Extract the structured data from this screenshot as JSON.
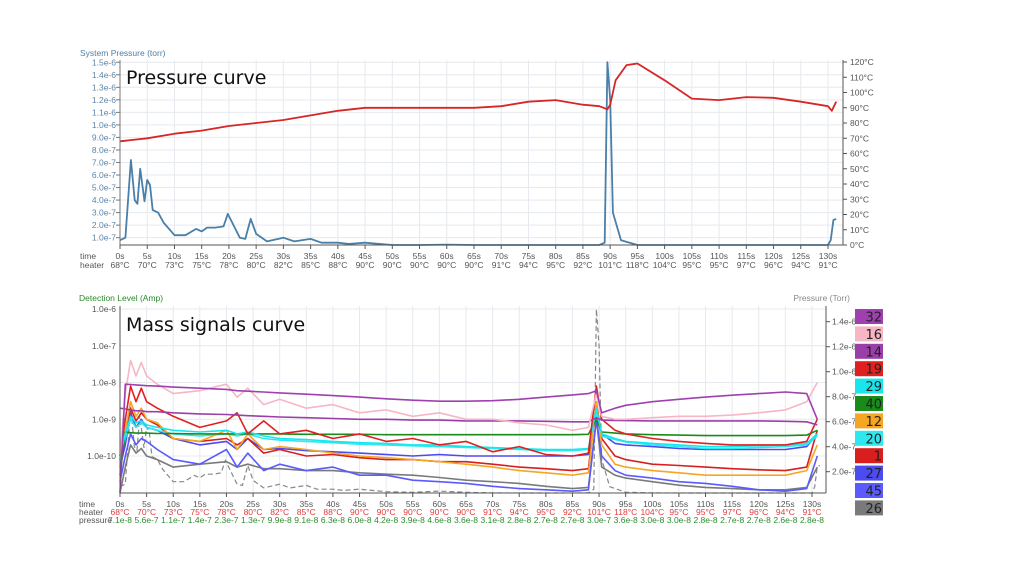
{
  "chart_data": [
    {
      "type": "line",
      "annotation": "Pressure curve",
      "ylabel": "System Pressure (torr)",
      "ylim": [
        0,
        1.5e-06
      ],
      "y_ticks": [
        "1.0e-7",
        "2.0e-7",
        "3.0e-7",
        "4.0e-7",
        "5.0e-7",
        "6.0e-7",
        "7.0e-7",
        "8.0e-7",
        "9.0e-7",
        "1.0e-6",
        "1.1e-6",
        "1.2e-6",
        "1.3e-6",
        "1.4e-6",
        "1.5e-6"
      ],
      "y2lim": [
        0,
        120
      ],
      "y2_ticks": [
        "0°C",
        "10°C",
        "20°C",
        "30°C",
        "40°C",
        "50°C",
        "60°C",
        "70°C",
        "80°C",
        "90°C",
        "100°C",
        "110°C",
        "120°C"
      ],
      "x_row_labels": [
        "time",
        "heater"
      ],
      "x_ticks": [
        "0s",
        "5s",
        "10s",
        "15s",
        "20s",
        "25s",
        "30s",
        "35s",
        "40s",
        "45s",
        "50s",
        "55s",
        "60s",
        "65s",
        "70s",
        "75s",
        "80s",
        "85s",
        "90s",
        "95s",
        "100s",
        "105s",
        "110s",
        "115s",
        "120s",
        "125s",
        "130s"
      ],
      "heater_ticks": [
        "68°C",
        "70°C",
        "73°C",
        "75°C",
        "78°C",
        "80°C",
        "82°C",
        "85°C",
        "88°C",
        "90°C",
        "90°C",
        "90°C",
        "90°C",
        "90°C",
        "91°C",
        "94°C",
        "95°C",
        "92°C",
        "101°C",
        "118°C",
        "104°C",
        "95°C",
        "95°C",
        "97°C",
        "96°C",
        "94°C",
        "91°C"
      ],
      "grid": true,
      "series": [
        {
          "axis": "left",
          "color": "#4a7fa8",
          "x": [
            0,
            1,
            2,
            2.7,
            3.2,
            3.7,
            4.5,
            5,
            5.5,
            6,
            7,
            8,
            10,
            12,
            14,
            15,
            16,
            17.5,
            19,
            19.8,
            20.5,
            22,
            23,
            24,
            25,
            27,
            30,
            32,
            35,
            37,
            40,
            42,
            45,
            50,
            55,
            60,
            65,
            70,
            80,
            88,
            89,
            89.5,
            90,
            90.5,
            92,
            95,
            100,
            110,
            125,
            130,
            130.5,
            131,
            131.5
          ],
          "y": [
            8e-08,
            1e-07,
            7.2e-07,
            4e-07,
            3.7e-07,
            6.5e-07,
            3.9e-07,
            5.6e-07,
            5.2e-07,
            3.2e-07,
            3e-07,
            2.2e-07,
            1.2e-07,
            1.2e-07,
            1.7e-07,
            1.5e-07,
            1.8e-07,
            1.8e-07,
            1.9e-07,
            2.9e-07,
            2.3e-07,
            1e-07,
            9e-08,
            2.5e-07,
            1.3e-07,
            7e-08,
            1e-07,
            7e-08,
            9e-08,
            6e-08,
            6e-08,
            5e-08,
            6e-08,
            4e-08,
            3.5e-08,
            4.5e-08,
            3.5e-08,
            3e-08,
            2.7e-08,
            3e-08,
            6e-08,
            1.5e-06,
            1.2e-06,
            3e-07,
            8e-08,
            3.6e-08,
            3e-08,
            2.8e-08,
            2.6e-08,
            2.8e-08,
            8e-08,
            2.4e-07,
            2.5e-07
          ]
        },
        {
          "axis": "right",
          "color": "#d62728",
          "x": [
            0,
            5,
            10,
            15,
            20,
            25,
            30,
            35,
            40,
            45,
            50,
            55,
            60,
            65,
            70,
            75,
            80,
            85,
            88,
            89.5,
            90,
            91,
            93,
            95,
            100,
            105,
            110,
            115,
            120,
            125,
            130,
            130.7,
            131.5
          ],
          "y": [
            68,
            70,
            73,
            75,
            78,
            80,
            82,
            85,
            88,
            90,
            90,
            90,
            90,
            90,
            91,
            94,
            95,
            92,
            91,
            89,
            92,
            108,
            118,
            119,
            108,
            96,
            95,
            97,
            96.5,
            94,
            91,
            88,
            94
          ]
        }
      ]
    },
    {
      "type": "line",
      "annotation": "Mass signals curve",
      "ylabel": "Detection Level (Amp)",
      "yscale": "log",
      "ylim": [
        1e-11,
        1e-06
      ],
      "y_ticks": [
        "1.0e-6",
        "1.0e-7",
        "1.0e-8",
        "1.0e-9",
        "1.0e-10"
      ],
      "y2label": "Pressure (Torr)",
      "y2lim": [
        0,
        1.5e-06
      ],
      "y2_ticks": [
        "2.0e-7",
        "4.0e-7",
        "6.0e-7",
        "8.0e-7",
        "1.0e-6",
        "1.2e-6",
        "1.4e-6"
      ],
      "x_row_labels": [
        "time",
        "heater",
        "pressure"
      ],
      "x_ticks": [
        "0s",
        "5s",
        "10s",
        "15s",
        "20s",
        "25s",
        "30s",
        "35s",
        "40s",
        "45s",
        "50s",
        "55s",
        "60s",
        "65s",
        "70s",
        "75s",
        "80s",
        "85s",
        "90s",
        "95s",
        "100s",
        "105s",
        "110s",
        "115s",
        "120s",
        "125s",
        "130s"
      ],
      "heater_ticks": [
        "68°C",
        "70°C",
        "73°C",
        "75°C",
        "78°C",
        "80°C",
        "82°C",
        "85°C",
        "88°C",
        "90°C",
        "90°C",
        "90°C",
        "90°C",
        "90°C",
        "91°C",
        "94°C",
        "95°C",
        "92°C",
        "101°C",
        "118°C",
        "104°C",
        "95°C",
        "95°C",
        "97°C",
        "96°C",
        "94°C",
        "91°C"
      ],
      "pressure_ticks": [
        "7.1e-8",
        "5.6e-7",
        "1.1e-7",
        "1.4e-7",
        "2.3e-7",
        "1.3e-7",
        "9.9e-8",
        "9.1e-8",
        "6.3e-8",
        "6.0e-8",
        "4.2e-8",
        "3.9e-8",
        "4.6e-8",
        "3.6e-8",
        "3.1e-8",
        "2.8e-8",
        "2.7e-8",
        "2.7e-8",
        "3.0e-7",
        "3.6e-8",
        "3.0e-8",
        "3.0e-8",
        "2.8e-8",
        "2.7e-8",
        "2.7e-8",
        "2.6e-8",
        "2.8e-8"
      ],
      "grid": true,
      "legend_position": "right",
      "x": [
        0,
        1,
        2,
        3,
        4,
        5,
        7,
        10,
        15,
        20,
        22,
        24,
        27,
        30,
        35,
        40,
        45,
        50,
        55,
        60,
        65,
        70,
        75,
        80,
        85,
        88,
        89.5,
        90.5,
        93,
        95,
        100,
        105,
        110,
        115,
        120,
        125,
        129,
        131
      ],
      "series": [
        {
          "name": "32",
          "color": "#a040b0",
          "y": [
            1e-11,
            9e-09,
            8.8e-09,
            8.6e-09,
            8.4e-09,
            8.2e-09,
            8e-09,
            7.5e-09,
            7e-09,
            6.5e-09,
            6e-09,
            5.8e-09,
            5.5e-09,
            5.2e-09,
            4.8e-09,
            4.4e-09,
            4e-09,
            3.6e-09,
            3.3e-09,
            3.1e-09,
            3.1e-09,
            3.2e-09,
            3.5e-09,
            4e-09,
            4.6e-09,
            5e-09,
            6e-09,
            1.5e-09,
            2e-09,
            2.4e-09,
            3e-09,
            3.5e-09,
            4e-09,
            4.5e-09,
            5e-09,
            5.5e-09,
            5e-09,
            1e-09
          ]
        },
        {
          "name": "16",
          "color": "#f7b6c4",
          "y": [
            1e-10,
            5e-09,
            4e-08,
            1.5e-08,
            3.5e-08,
            1.5e-08,
            9e-09,
            5e-09,
            6e-09,
            9e-09,
            4e-09,
            7e-09,
            2.5e-09,
            3.5e-09,
            2e-09,
            2.5e-09,
            1.5e-09,
            1.8e-09,
            1.2e-09,
            1.5e-09,
            1e-09,
            1e-09,
            8e-10,
            7e-10,
            5e-10,
            6e-10,
            5e-09,
            1.2e-09,
            1e-09,
            1e-09,
            1.1e-09,
            1.2e-09,
            1.2e-09,
            1.3e-09,
            1.5e-09,
            1.8e-09,
            3e-09,
            1e-08
          ]
        },
        {
          "name": "14",
          "color": "#9b3fa8",
          "y": [
            2e-09,
            1.9e-09,
            1.8e-09,
            1.7e-09,
            1.7e-09,
            1.6e-09,
            1.6e-09,
            1.5e-09,
            1.4e-09,
            1.35e-09,
            1.3e-09,
            1.25e-09,
            1.2e-09,
            1.15e-09,
            1.1e-09,
            1.05e-09,
            1e-09,
            1e-09,
            9.5e-10,
            9.5e-10,
            9e-10,
            9e-10,
            9e-10,
            8.8e-10,
            8.5e-10,
            8.5e-10,
            1.1e-09,
            9.5e-10,
            9.3e-10,
            9.2e-10,
            9e-10,
            9e-10,
            9e-10,
            9e-10,
            9e-10,
            8.8e-10,
            8.5e-10,
            7e-10
          ]
        },
        {
          "name": "19",
          "color": "#e02020",
          "y": [
            1e-10,
            1e-09,
            8e-09,
            3e-09,
            7e-09,
            3e-09,
            2e-09,
            1.2e-09,
            6e-10,
            9e-10,
            1.5e-09,
            4e-10,
            9e-10,
            4e-10,
            5e-10,
            3e-10,
            4e-10,
            2.5e-10,
            3e-10,
            2e-10,
            2.5e-10,
            1.3e-10,
            1.8e-10,
            1.1e-10,
            1e-10,
            1.2e-10,
            8e-09,
            1e-09,
            5e-10,
            4e-10,
            3e-10,
            2.5e-10,
            2.2e-10,
            2e-10,
            2e-10,
            2e-10,
            2.5e-10,
            1e-09
          ]
        },
        {
          "name": "29",
          "color": "#19e6ec",
          "y": [
            1e-10,
            4e-10,
            1.2e-09,
            8e-10,
            9e-10,
            7e-10,
            6e-10,
            5e-10,
            4.5e-10,
            5e-10,
            4e-10,
            4.5e-10,
            3.5e-10,
            3e-10,
            2.8e-10,
            2.5e-10,
            2.3e-10,
            2.2e-10,
            2e-10,
            2e-10,
            1.8e-10,
            1.7e-10,
            1.6e-10,
            1.5e-10,
            1.5e-10,
            1.6e-10,
            2e-09,
            4e-10,
            3e-10,
            2.5e-10,
            2.2e-10,
            2e-10,
            1.8e-10,
            1.8e-10,
            1.9e-10,
            2e-10,
            2.2e-10,
            4e-10
          ]
        },
        {
          "name": "40",
          "color": "#1a8a1a",
          "y": [
            3e-11,
            4.5e-10,
            4.3e-10,
            4.2e-10,
            4.2e-10,
            4.2e-10,
            4.1e-10,
            4.1e-10,
            4e-10,
            4e-10,
            4e-10,
            4e-10,
            4e-10,
            4e-10,
            3.9e-10,
            3.9e-10,
            3.9e-10,
            3.8e-10,
            3.8e-10,
            3.8e-10,
            3.8e-10,
            3.8e-10,
            3.8e-10,
            3.8e-10,
            3.8e-10,
            3.9e-10,
            1e-09,
            4.5e-10,
            4.2e-10,
            4e-10,
            3.8e-10,
            3.7e-10,
            3.6e-10,
            3.6e-10,
            3.6e-10,
            3.6e-10,
            3.7e-10,
            5e-10
          ]
        },
        {
          "name": "12",
          "color": "#f5a623",
          "y": [
            1e-10,
            5e-10,
            3e-09,
            1.2e-09,
            2e-09,
            1e-09,
            8e-10,
            3e-10,
            2.5e-10,
            5e-10,
            1.5e-10,
            4e-10,
            1.5e-10,
            1.8e-10,
            1.5e-10,
            1.2e-10,
            1e-10,
            9e-11,
            8e-11,
            7e-11,
            6e-11,
            5e-11,
            4e-11,
            3.5e-11,
            3e-11,
            3.5e-11,
            3e-09,
            2e-10,
            6e-11,
            5e-11,
            4e-11,
            3.5e-11,
            3e-11,
            3e-11,
            3e-11,
            3e-11,
            4e-11,
            2e-10
          ]
        },
        {
          "name": "20",
          "color": "#2ee8f0",
          "y": [
            8e-11,
            3e-10,
            1e-09,
            6e-10,
            8e-10,
            6e-10,
            5e-10,
            4e-10,
            3.5e-10,
            4e-10,
            3.5e-10,
            4e-10,
            3e-10,
            2.7e-10,
            2.5e-10,
            2.3e-10,
            2.1e-10,
            2e-10,
            1.9e-10,
            1.8e-10,
            1.7e-10,
            1.6e-10,
            1.5e-10,
            1.4e-10,
            1.4e-10,
            1.5e-10,
            1.5e-09,
            3.5e-10,
            2.8e-10,
            2.4e-10,
            2e-10,
            1.8e-10,
            1.6e-10,
            1.6e-10,
            1.7e-10,
            1.8e-10,
            2e-10,
            3.5e-10
          ]
        },
        {
          "name": "1",
          "color": "#d91e1e",
          "y": [
            8e-11,
            3e-10,
            2e-09,
            9e-10,
            1.5e-09,
            1e-09,
            7e-10,
            3e-10,
            2.5e-10,
            3e-10,
            2e-10,
            3e-10,
            1.2e-10,
            1.5e-10,
            1e-10,
            1.1e-10,
            9e-11,
            8e-11,
            8e-11,
            7e-11,
            7e-11,
            6e-11,
            5e-11,
            4.5e-11,
            4e-11,
            4.5e-11,
            3e-09,
            3e-10,
            1e-10,
            8e-11,
            6e-11,
            5.5e-11,
            5e-11,
            4.5e-11,
            4.2e-11,
            4e-11,
            5e-11,
            5e-10
          ]
        },
        {
          "name": "27",
          "color": "#4b4bf0",
          "y": [
            5e-11,
            2e-10,
            1.5e-09,
            6e-10,
            1e-09,
            6e-10,
            5e-10,
            3e-10,
            2e-10,
            2.5e-10,
            1.5e-10,
            3e-10,
            1.5e-10,
            1.6e-10,
            1.4e-10,
            1.3e-10,
            1.2e-10,
            1.1e-10,
            1e-10,
            1.1e-10,
            1e-10,
            1e-10,
            1e-10,
            1e-10,
            1e-10,
            1.1e-10,
            2e-09,
            4e-10,
            2.2e-10,
            2e-10,
            1.8e-10,
            1.6e-10,
            1.5e-10,
            1.5e-10,
            1.5e-10,
            1.5e-10,
            1.8e-10,
            4e-10
          ]
        },
        {
          "name": "45",
          "color": "#5a5aff",
          "y": [
            2e-11,
            1e-10,
            4e-10,
            2e-10,
            3e-10,
            2.5e-10,
            1.5e-10,
            8e-11,
            6e-11,
            1.5e-10,
            5e-11,
            1.2e-10,
            4e-11,
            6e-11,
            4e-11,
            5e-11,
            3e-11,
            3e-11,
            2.2e-11,
            2e-11,
            1.8e-11,
            1.5e-11,
            1.3e-11,
            1.2e-11,
            1.1e-11,
            1.2e-11,
            1e-09,
            1e-10,
            4e-11,
            3e-11,
            2.5e-11,
            2e-11,
            1.8e-11,
            1.5e-11,
            1.2e-11,
            1.1e-11,
            1.3e-11,
            1e-10
          ]
        },
        {
          "name": "26",
          "color": "#7a7a7a",
          "y": [
            1e-11,
            5e-11,
            2e-10,
            1.2e-10,
            1.6e-10,
            1e-10,
            8e-11,
            5e-11,
            6e-11,
            7e-11,
            5e-11,
            6e-11,
            4.5e-11,
            4.5e-11,
            4e-11,
            4e-11,
            3.5e-11,
            3.2e-11,
            3e-11,
            2.6e-11,
            2.2e-11,
            2e-11,
            1.8e-11,
            1.5e-11,
            1.3e-11,
            1.4e-11,
            1e-09,
            5e-11,
            3e-11,
            2.5e-11,
            2e-11,
            1.6e-11,
            1.4e-11,
            1.3e-11,
            1.2e-11,
            1.2e-11,
            1.4e-11,
            5e-11
          ]
        }
      ]
    }
  ]
}
